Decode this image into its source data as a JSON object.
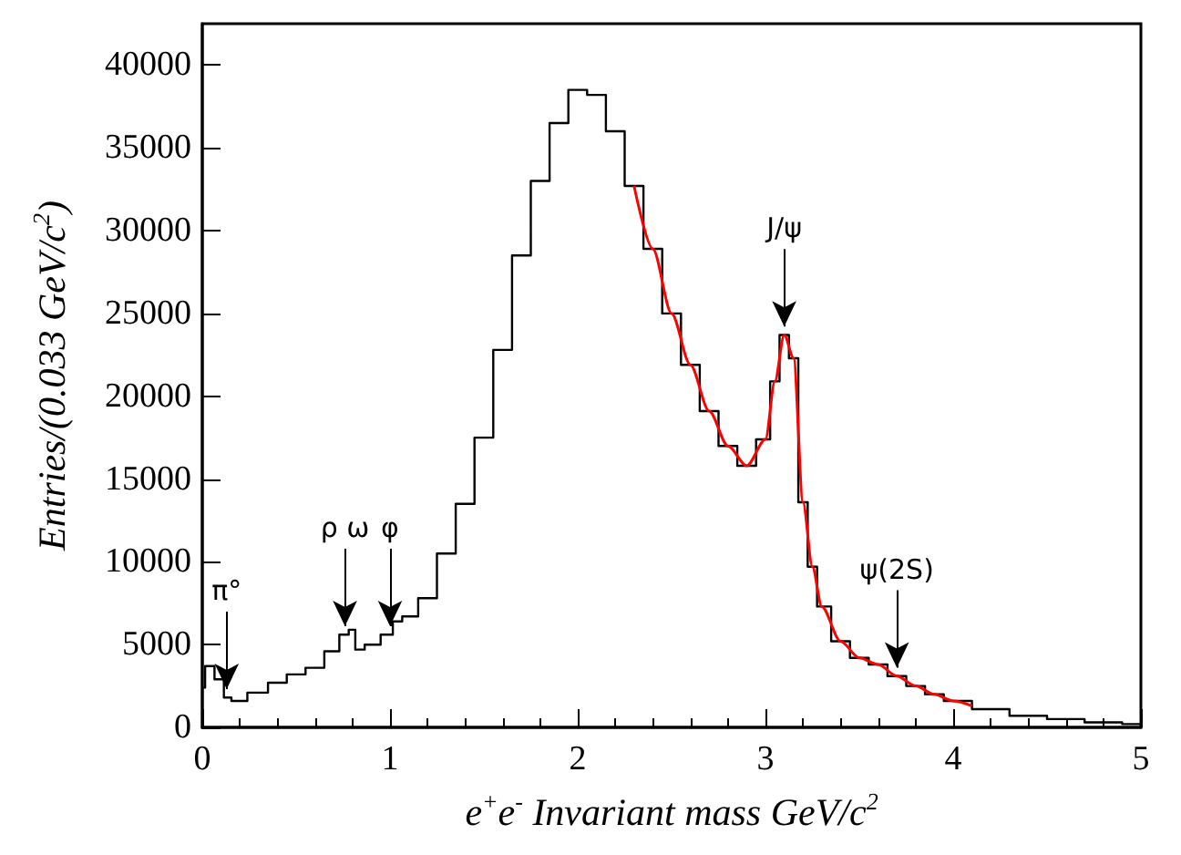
{
  "chart_data": {
    "type": "step",
    "xlabel": "e$^{+}$e$^{-}$ Invariant mass GeV/c$^{2}$",
    "ylabel": "Entries/(0.033 GeV/c$^{2}$)",
    "x": [
      0,
      0.03,
      0.1,
      0.13,
      0.18,
      0.3,
      0.4,
      0.5,
      0.6,
      0.7,
      0.76,
      0.8,
      0.83,
      0.9,
      1.0,
      1.03,
      1.1,
      1.2,
      1.3,
      1.4,
      1.5,
      1.6,
      1.7,
      1.8,
      1.9,
      2.0,
      2.1,
      2.2,
      2.3,
      2.4,
      2.5,
      2.6,
      2.7,
      2.8,
      2.9,
      3.0,
      3.05,
      3.1,
      3.15,
      3.2,
      3.25,
      3.3,
      3.4,
      3.5,
      3.6,
      3.7,
      3.8,
      3.9,
      4.0,
      4.2,
      4.4,
      4.6,
      4.8,
      5.0
    ],
    "series": [
      {
        "color": "#000000",
        "values": [
          2400,
          3700,
          2900,
          1800,
          1600,
          2100,
          2700,
          3200,
          3600,
          4600,
          5600,
          5900,
          4700,
          5000,
          5600,
          6400,
          6700,
          7800,
          10500,
          13500,
          17500,
          22800,
          28500,
          33000,
          36500,
          38500,
          38200,
          36000,
          32700,
          28900,
          25000,
          21900,
          19100,
          17000,
          15800,
          17400,
          20900,
          23700,
          22300,
          13600,
          9700,
          7300,
          5200,
          4200,
          3800,
          3100,
          2500,
          2000,
          1600,
          1100,
          700,
          500,
          300,
          200
        ]
      },
      {
        "type": "line",
        "color": "#ff0000",
        "x": [
          2.3,
          2.4,
          2.5,
          2.6,
          2.7,
          2.8,
          2.9,
          3.0,
          3.05,
          3.1,
          3.15,
          3.2,
          3.25,
          3.3,
          3.4,
          3.5,
          3.6,
          3.7,
          3.8,
          3.9,
          4.0,
          4.1
        ],
        "values": [
          32700,
          28900,
          25000,
          21900,
          19100,
          17000,
          15800,
          17400,
          20900,
          23700,
          22300,
          13600,
          9700,
          7300,
          5200,
          4200,
          3800,
          3100,
          2500,
          2000,
          1600,
          1300
        ]
      }
    ],
    "annotations": [
      {
        "text": "π°",
        "x": 0.13,
        "y": 1800
      },
      {
        "text": "ρ ω",
        "x": 0.76,
        "y": 5600
      },
      {
        "text": "φ",
        "x": 1.0,
        "y": 5600
      },
      {
        "text": "J/ψ",
        "x": 3.1,
        "y": 23700
      },
      {
        "text": "ψ(2S)",
        "x": 3.7,
        "y": 3100
      }
    ],
    "xlim": [
      0,
      5
    ],
    "xticks": [
      0,
      1,
      2,
      3,
      4,
      5
    ],
    "ylim": [
      0,
      42500
    ],
    "yticks": [
      0,
      5000,
      10000,
      15000,
      20000,
      25000,
      30000,
      35000,
      40000
    ],
    "grid": false
  }
}
